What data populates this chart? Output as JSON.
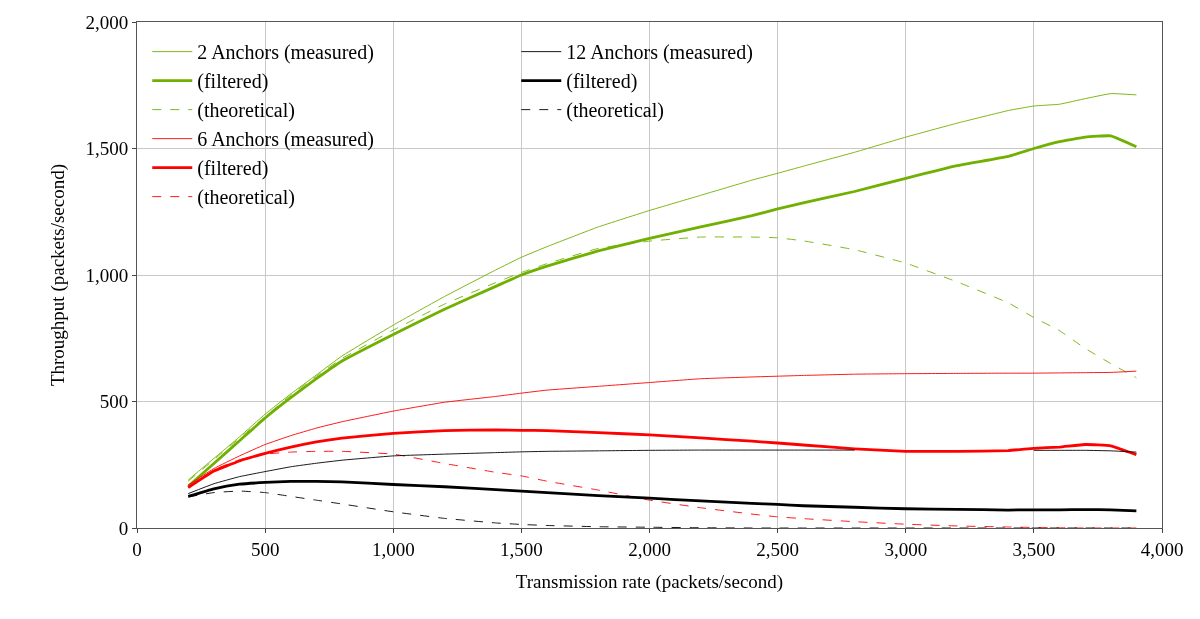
{
  "chart_data": {
    "type": "line",
    "xlabel": "Transmission rate (packets/second)",
    "ylabel": "Throughput (packets/second)",
    "x": [
      200,
      300,
      400,
      500,
      600,
      700,
      800,
      1000,
      1200,
      1400,
      1500,
      1600,
      1800,
      2000,
      2200,
      2400,
      2500,
      2600,
      2800,
      3000,
      3200,
      3400,
      3500,
      3600,
      3700,
      3800,
      3900
    ],
    "xlim": [
      0,
      4000
    ],
    "xticks": [
      0,
      500,
      {
        "value": 1000,
        "label": "1,000"
      },
      {
        "value": 1500,
        "label": "1,500"
      },
      {
        "value": 2000,
        "label": "2,000"
      },
      {
        "value": 2500,
        "label": "2,500"
      },
      {
        "value": 3000,
        "label": "3,000"
      },
      {
        "value": 3500,
        "label": "3,500"
      },
      {
        "value": 4000,
        "label": "4,000"
      }
    ],
    "ylim": [
      0,
      2000
    ],
    "yticks": [
      0,
      500,
      {
        "value": 1000,
        "label": "1,000"
      },
      {
        "value": 1500,
        "label": "1,500"
      },
      {
        "value": 2000,
        "label": "2,000"
      }
    ],
    "grid": true,
    "legend": "top left",
    "marker": "none",
    "series": [
      {
        "name": "2 Anchors (measured)",
        "color": "#6fb000",
        "line_style": "solid",
        "values": [
          190,
          275,
          360,
          450,
          530,
          605,
          680,
          802,
          915,
          1020,
          1070,
          1112,
          1190,
          1255,
          1315,
          1375,
          1402,
          1430,
          1485,
          1545,
          1600,
          1650,
          1668,
          1675,
          1697,
          1717,
          1712
        ]
      },
      {
        "name": "(filtered)",
        "color": "#6fb000",
        "line_style": "solid",
        "values": [
          165,
          255,
          345,
          435,
          515,
          590,
          660,
          765,
          865,
          955,
          1000,
          1035,
          1095,
          1145,
          1190,
          1235,
          1261,
          1285,
          1330,
          1382,
          1432,
          1469,
          1500,
          1527,
          1545,
          1550,
          1507
        ]
      },
      {
        "name": "(theoretical)",
        "color": "#6fb000",
        "line_style": "dashed",
        "values": [
          185,
          270,
          355,
          440,
          525,
          600,
          670,
          782,
          885,
          970,
          1010,
          1045,
          1105,
          1134,
          1150,
          1150,
          1147,
          1135,
          1100,
          1047,
          973,
          890,
          832,
          780,
          710,
          650,
          594
        ]
      },
      {
        "name": "6 Anchors (measured)",
        "color": "#ff0000",
        "line_style": "solid",
        "values": [
          170,
          235,
          285,
          330,
          365,
          395,
          420,
          462,
          497,
          520,
          533,
          545,
          560,
          575,
          590,
          597,
          600,
          603,
          608,
          610,
          611,
          612,
          612,
          613,
          614,
          615,
          620
        ]
      },
      {
        "name": "(filtered)",
        "color": "#ff0000",
        "line_style": "solid",
        "values": [
          160,
          225,
          265,
          295,
          320,
          340,
          355,
          374,
          385,
          388,
          386,
          385,
          377,
          368,
          356,
          343,
          336,
          328,
          313,
          303,
          303,
          306,
          315,
          320,
          330,
          325,
          290
        ]
      },
      {
        "name": "(theoretical)",
        "color": "#ff0000",
        "line_style": "dashed",
        "values": [
          160,
          230,
          270,
          292,
          300,
          303,
          303,
          292,
          255,
          220,
          206,
          185,
          150,
          110,
          80,
          55,
          44,
          37,
          25,
          15,
          8,
          4,
          2,
          1,
          0,
          0,
          0
        ]
      },
      {
        "name": "12 Anchors (measured)",
        "color": "#000000",
        "line_style": "solid",
        "values": [
          136,
          175,
          203,
          223,
          242,
          256,
          268,
          285,
          292,
          298,
          301,
          303,
          305,
          307,
          308,
          308,
          308,
          308,
          308,
          null,
          null,
          null,
          307,
          307,
          307,
          305,
          300
        ]
      },
      {
        "name": "(filtered)",
        "color": "#000000",
        "line_style": "solid",
        "values": [
          125,
          155,
          173,
          180,
          184,
          184,
          182,
          172,
          163,
          152,
          146,
          140,
          128,
          118,
          107,
          97,
          93,
          88,
          82,
          76,
          74,
          71,
          72,
          72,
          73,
          72,
          68
        ]
      },
      {
        "name": "(theoretical)",
        "color": "#000000",
        "line_style": "dashed",
        "values": [
          123,
          140,
          146,
          140,
          125,
          110,
          95,
          64,
          38,
          20,
          14,
          10,
          5,
          3,
          1,
          0,
          0,
          0,
          0,
          0,
          0,
          0,
          0,
          0,
          0,
          0,
          0
        ]
      }
    ]
  }
}
